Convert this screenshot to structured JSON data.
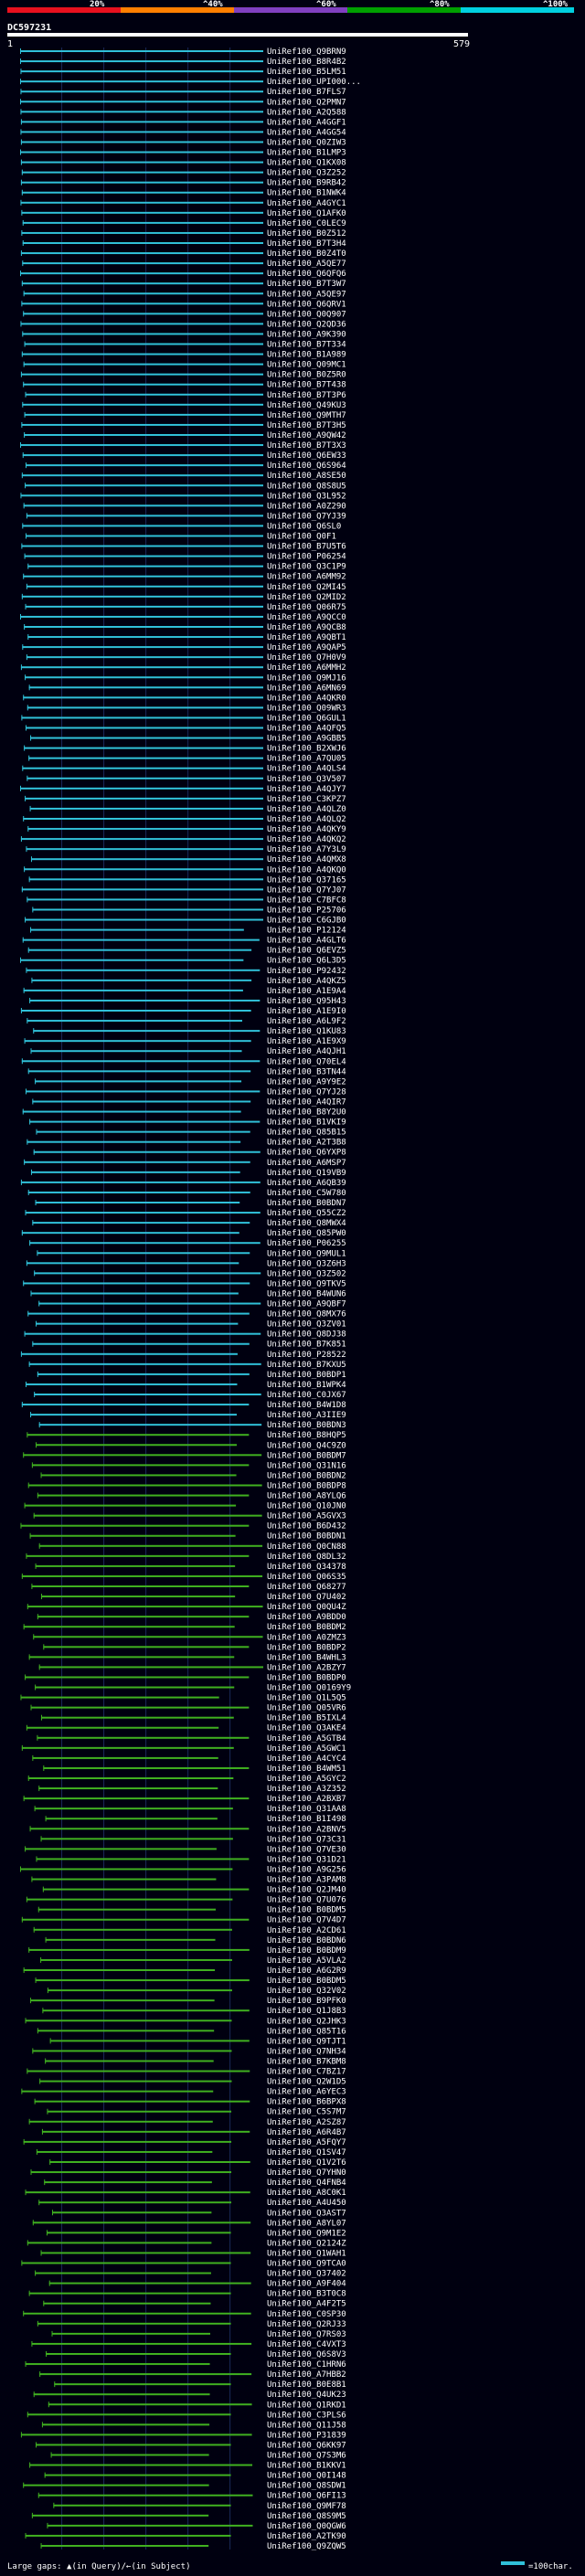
{
  "chart_data": {
    "type": "alignment-coverage",
    "query_id": "DC597231",
    "query_start": 1,
    "query_end": 579,
    "identity_scale": [
      {
        "label": "20%",
        "color": "#e8101e"
      },
      {
        "label": "^40%",
        "color": "#ff7f00"
      },
      {
        "label": "^60%",
        "color": "#8040c0"
      },
      {
        "label": "^80%",
        "color": "#00a000"
      },
      {
        "label": "^100%",
        "color": "#00d0e0"
      }
    ],
    "legend": {
      "gaps_text": "Large gaps: ▲(in Query)/←(in Subject)",
      "scale_text": "=100char."
    },
    "hit_colors": {
      "high": "#30c0d8",
      "mid": "#40b020"
    },
    "hits": [
      "UniRef100_Q9BRN9",
      "UniRef100_B8R4B2",
      "UniRef100_B5LM51",
      "UniRef100_UPI000...",
      "UniRef100_B7FLS7",
      "UniRef100_Q2PMN7",
      "UniRef100_A2Q588",
      "UniRef100_A4GGF1",
      "UniRef100_A4GG54",
      "UniRef100_Q0ZIW3",
      "UniRef100_B1LMP3",
      "UniRef100_Q1KX08",
      "UniRef100_Q3Z252",
      "UniRef100_B9RB42",
      "UniRef100_B1NWK4",
      "UniRef100_A4GYC1",
      "UniRef100_Q1AFK0",
      "UniRef100_C0LEC9",
      "UniRef100_B0Z512",
      "UniRef100_B7T3H4",
      "UniRef100_B0Z4T0",
      "UniRef100_A5QE77",
      "UniRef100_Q6QFQ6",
      "UniRef100_B7T3W7",
      "UniRef100_A5QE97",
      "UniRef100_Q6QRV1",
      "UniRef100_Q0Q907",
      "UniRef100_Q2QD36",
      "UniRef100_A9K390",
      "UniRef100_B7T334",
      "UniRef100_B1A989",
      "UniRef100_Q09MC1",
      "UniRef100_B0Z5R0",
      "UniRef100_B7T438",
      "UniRef100_B7T3P6",
      "UniRef100_Q49KU3",
      "UniRef100_Q9MTH7",
      "UniRef100_B7T3H5",
      "UniRef100_A9QW42",
      "UniRef100_B7T3X3",
      "UniRef100_Q6EW33",
      "UniRef100_Q6S964",
      "UniRef100_A8SE50",
      "UniRef100_Q8S8U5",
      "UniRef100_Q3L952",
      "UniRef100_A0Z290",
      "UniRef100_Q7YJ39",
      "UniRef100_Q6SL0",
      "UniRef100_Q0F1",
      "UniRef100_B7U5T6",
      "UniRef100_P06254",
      "UniRef100_Q3C1P9",
      "UniRef100_A6MM92",
      "UniRef100_Q2MI45",
      "UniRef100_Q2MID2",
      "UniRef100_Q06R75",
      "UniRef100_A9QCC0",
      "UniRef100_A9QCB8",
      "UniRef100_A9QBT1",
      "UniRef100_A9QAP5",
      "UniRef100_Q7H0V9",
      "UniRef100_A6MMH2",
      "UniRef100_Q9MJ16",
      "UniRef100_A6MN69",
      "UniRef100_A4QKR0",
      "UniRef100_Q09WR3",
      "UniRef100_Q6GUL1",
      "UniRef100_A4QFQ5",
      "UniRef100_A9GBB5",
      "UniRef100_B2XWJ6",
      "UniRef100_A7QU05",
      "UniRef100_A4QLS4",
      "UniRef100_Q3V507",
      "UniRef100_A4QJY7",
      "UniRef100_C3KPZ7",
      "UniRef100_A4QLZ0",
      "UniRef100_A4QLQ2",
      "UniRef100_A4QKY9",
      "UniRef100_A4QKQ2",
      "UniRef100_A7Y3L9",
      "UniRef100_A4QMX8",
      "UniRef100_A4QKQ0",
      "UniRef100_Q37165",
      "UniRef100_Q7YJ07",
      "UniRef100_C7BFC8",
      "UniRef100_P25706",
      "UniRef100_C6GJB0",
      "UniRef100_P12124",
      "UniRef100_A4GLT6",
      "UniRef100_Q6EVZ5",
      "UniRef100_Q6L3D5",
      "UniRef100_P92432",
      "UniRef100_A4QKZ5",
      "UniRef100_A1E9A4",
      "UniRef100_Q95H43",
      "UniRef100_A1E9I0",
      "UniRef100_A6L9F2",
      "UniRef100_Q1KU83",
      "UniRef100_A1E9X9",
      "UniRef100_A4QJH1",
      "UniRef100_Q70EL4",
      "UniRef100_B3TN44",
      "UniRef100_A9Y9E2",
      "UniRef100_Q7YJ28",
      "UniRef100_A4QIR7",
      "UniRef100_B8Y2U0",
      "UniRef100_B1VKI9",
      "UniRef100_Q85B15",
      "UniRef100_A2T3B8",
      "UniRef100_Q6YXP8",
      "UniRef100_A6MSP7",
      "UniRef100_Q19VB9",
      "UniRef100_A6QB39",
      "UniRef100_C5W780",
      "UniRef100_B0BDN7",
      "UniRef100_Q55CZ2",
      "UniRef100_Q8MWX4",
      "UniRef100_Q85PW0",
      "UniRef100_P06255",
      "UniRef100_Q9MUL1",
      "UniRef100_Q3Z6H3",
      "UniRef100_Q3Z502",
      "UniRef100_Q9TKV5",
      "UniRef100_B4WUN6",
      "UniRef100_A9QBF7",
      "UniRef100_Q8MX76",
      "UniRef100_Q3ZV01",
      "UniRef100_Q8DJ38",
      "UniRef100_B7K851",
      "UniRef100_P28522",
      "UniRef100_B7KXU5",
      "UniRef100_B0BDP1",
      "UniRef100_B1WPK4",
      "UniRef100_C0JX67",
      "UniRef100_B4W1D8",
      "UniRef100_A3IIE9",
      "UniRef100_B0BDN3",
      "UniRef100_B8HQP5",
      "UniRef100_Q4C9Z0",
      "UniRef100_B0BDM7",
      "UniRef100_Q31N16",
      "UniRef100_B0BDN2",
      "UniRef100_B0BDP8",
      "UniRef100_A8YLQ6",
      "UniRef100_Q10JN0",
      "UniRef100_A5GVX3",
      "UniRef100_B6D432",
      "UniRef100_B0BDN1",
      "UniRef100_Q0CN88",
      "UniRef100_Q8DL32",
      "UniRef100_Q34378",
      "UniRef100_Q06S35",
      "UniRef100_Q68277",
      "UniRef100_Q7U402",
      "UniRef100_Q0QU4Z",
      "UniRef100_A9BDD0",
      "UniRef100_B0BDM2",
      "UniRef100_A0ZMZ3",
      "UniRef100_B0BDP2",
      "UniRef100_B4WHL3",
      "UniRef100_A2BZY7",
      "UniRef100_B0BDP0",
      "UniRef100_Q0169Y9",
      "UniRef100_Q1L5Q5",
      "UniRef100_Q05VR6",
      "UniRef100_B5IXL4",
      "UniRef100_Q3AKE4",
      "UniRef100_A5GTB4",
      "UniRef100_A5GWC1",
      "UniRef100_A4CYC4",
      "UniRef100_B4WM51",
      "UniRef100_A5GYC2",
      "UniRef100_A3Z352",
      "UniRef100_A2BXB7",
      "UniRef100_Q31AA8",
      "UniRef100_B1I498",
      "UniRef100_A2BNV5",
      "UniRef100_Q73C31",
      "UniRef100_Q7VE30",
      "UniRef100_Q31D21",
      "UniRef100_A9G256",
      "UniRef100_A3PAM8",
      "UniRef100_Q2JM40",
      "UniRef100_Q7U076",
      "UniRef100_B0BDM5",
      "UniRef100_Q7V4D7",
      "UniRef100_A2CD61",
      "UniRef100_B0BDN6",
      "UniRef100_B0BDM9",
      "UniRef100_A5VLA2",
      "UniRef100_A6G2R9",
      "UniRef100_B0BDM5",
      "UniRef100_Q32V02",
      "UniRef100_B9PFK0",
      "UniRef100_Q1J8B3",
      "UniRef100_Q2JHK3",
      "UniRef100_Q85T16",
      "UniRef100_Q9TJT1",
      "UniRef100_Q7NH34",
      "UniRef100_B7KBM8",
      "UniRef100_C7BZ17",
      "UniRef100_Q2W1D5",
      "UniRef100_A6YEC3",
      "UniRef100_B6BPX8",
      "UniRef100_C5S7M7",
      "UniRef100_A2SZ87",
      "UniRef100_A6R4B7",
      "UniRef100_A5FQY7",
      "UniRef100_Q1SV47",
      "UniRef100_Q1V2T6",
      "UniRef100_Q7YHN0",
      "UniRef100_Q4FNB4",
      "UniRef100_A8C0K1",
      "UniRef100_A4U450",
      "UniRef100_Q3AST7",
      "UniRef100_A8YL07",
      "UniRef100_Q9M1E2",
      "UniRef100_Q2124Z",
      "UniRef100_Q1WAH1",
      "UniRef100_Q9TCA0",
      "UniRef100_Q37402",
      "UniRef100_A9F404",
      "UniRef100_B3T0C8",
      "UniRef100_A4F2T5",
      "UniRef100_C0SP30",
      "UniRef100_Q2RJ33",
      "UniRef100_Q7RS03",
      "UniRef100_C4VXT3",
      "UniRef100_Q6S8V3",
      "UniRef100_C1HRN6",
      "UniRef100_A7HBB2",
      "UniRef100_B0E8B1",
      "UniRef100_Q4UK23",
      "UniRef100_Q1RKD1",
      "UniRef100_C3PLS6",
      "UniRef100_Q11J58",
      "UniRef100_P31839",
      "UniRef100_Q6KK97",
      "UniRef100_Q7S3M6",
      "UniRef100_B1KKV1",
      "UniRef100_Q0I148",
      "UniRef100_Q8SDW1",
      "UniRef100_Q6FI13",
      "UniRef100_Q9MF78",
      "UniRef100_Q8S9M5",
      "UniRef100_Q0QGW6",
      "UniRef100_A2TK90",
      "UniRef100_Q9ZQW5"
    ]
  }
}
